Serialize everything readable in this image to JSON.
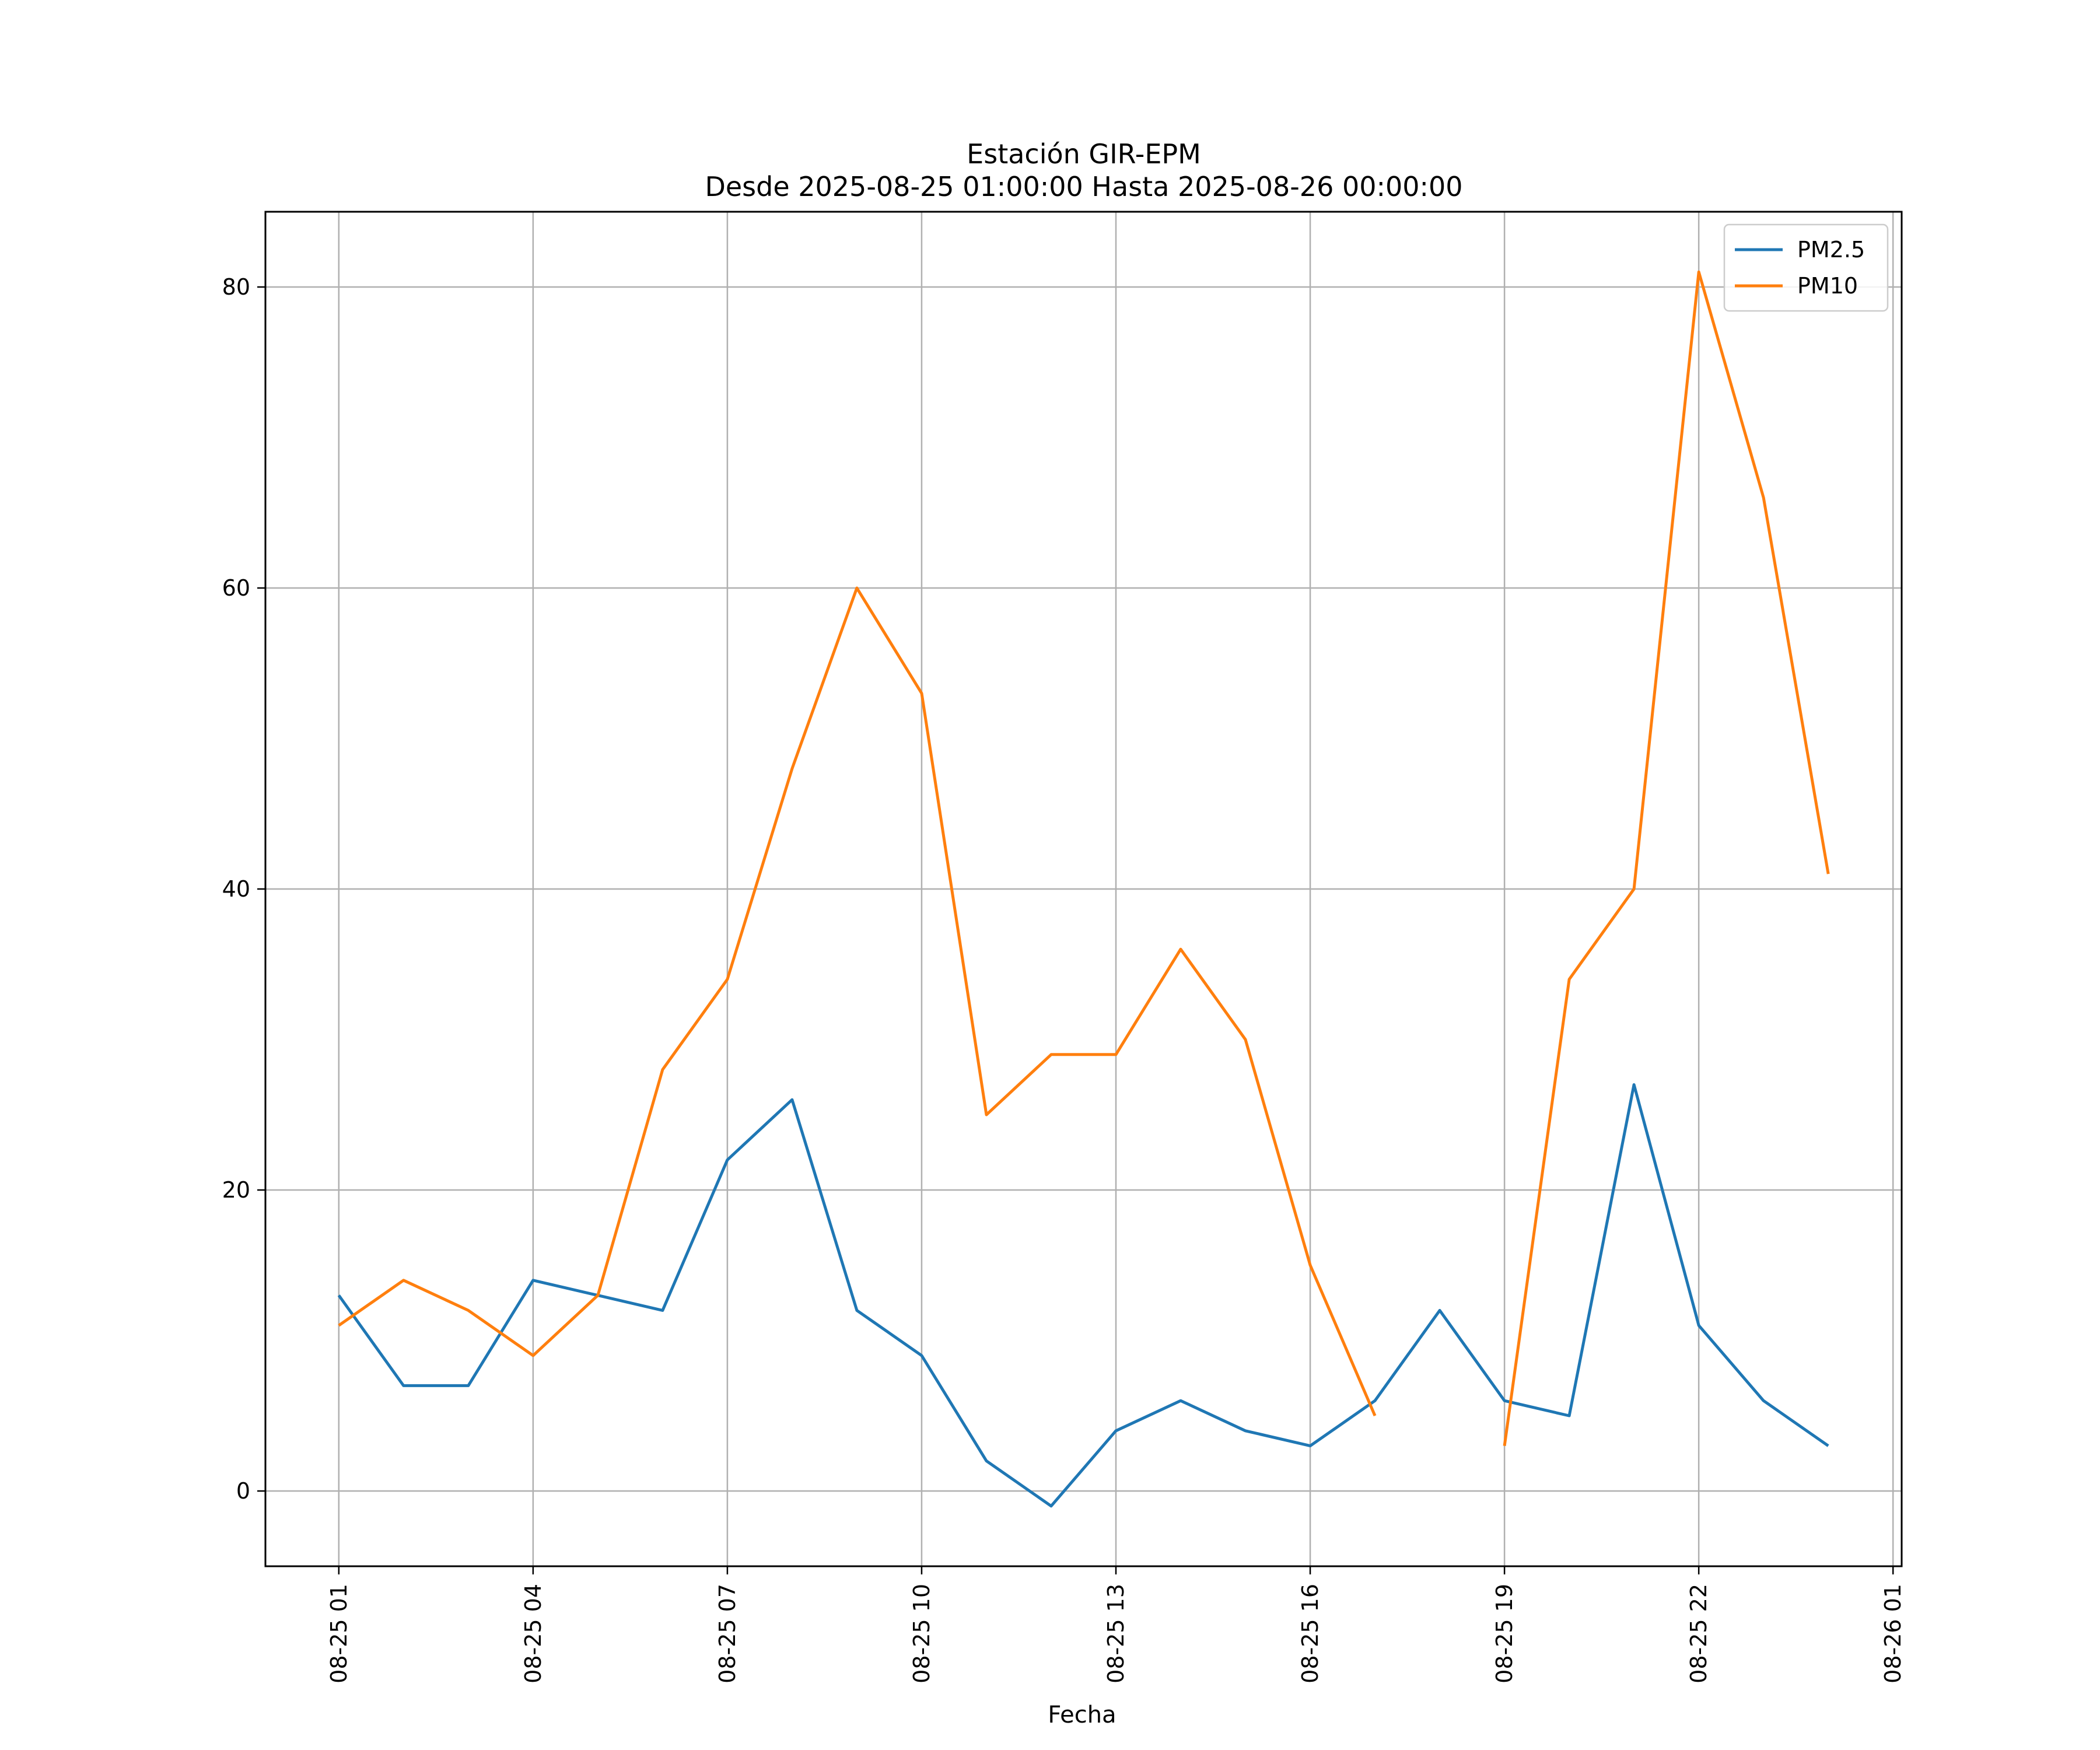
{
  "chart_data": {
    "type": "line",
    "title": "Estación GIR-EPM",
    "subtitle": "Desde 2025-08-25 01:00:00 Hasta 2025-08-26 00:00:00",
    "xlabel": "Fecha",
    "ylabel": "",
    "x": [
      "2025-08-25 01:00",
      "2025-08-25 02:00",
      "2025-08-25 03:00",
      "2025-08-25 04:00",
      "2025-08-25 05:00",
      "2025-08-25 06:00",
      "2025-08-25 07:00",
      "2025-08-25 08:00",
      "2025-08-25 09:00",
      "2025-08-25 10:00",
      "2025-08-25 11:00",
      "2025-08-25 12:00",
      "2025-08-25 13:00",
      "2025-08-25 14:00",
      "2025-08-25 15:00",
      "2025-08-25 16:00",
      "2025-08-25 17:00",
      "2025-08-25 18:00",
      "2025-08-25 19:00",
      "2025-08-25 20:00",
      "2025-08-25 21:00",
      "2025-08-25 22:00",
      "2025-08-25 23:00",
      "2025-08-26 00:00"
    ],
    "xlim": [
      "2025-08-24 23:52",
      "2025-08-26 01:08"
    ],
    "xticks": [
      "2025-08-25 01:00",
      "2025-08-25 04:00",
      "2025-08-25 07:00",
      "2025-08-25 10:00",
      "2025-08-25 13:00",
      "2025-08-25 16:00",
      "2025-08-25 19:00",
      "2025-08-25 22:00",
      "2025-08-26 01:00"
    ],
    "xtick_labels": [
      "08-25 01",
      "08-25 04",
      "08-25 07",
      "08-25 10",
      "08-25 13",
      "08-25 16",
      "08-25 19",
      "08-25 22",
      "08-26 01"
    ],
    "ylim": [
      -5,
      85
    ],
    "yticks": [
      0,
      20,
      40,
      60,
      80
    ],
    "ytick_labels": [
      "0",
      "20",
      "40",
      "60",
      "80"
    ],
    "grid": true,
    "legend_position": "top-right",
    "series": [
      {
        "name": "PM2.5",
        "color": "#1f77b4",
        "values": [
          13,
          7,
          7,
          14,
          13,
          12,
          22,
          26,
          12,
          9,
          2,
          -1,
          4,
          6,
          4,
          3,
          6,
          12,
          6,
          5,
          27,
          11,
          6,
          3
        ]
      },
      {
        "name": "PM10",
        "color": "#ff7f0e",
        "values": [
          11,
          14,
          12,
          9,
          13,
          28,
          34,
          48,
          60,
          53,
          25,
          29,
          29,
          36,
          30,
          15,
          5,
          null,
          3,
          34,
          40,
          81,
          66,
          41
        ]
      }
    ]
  }
}
